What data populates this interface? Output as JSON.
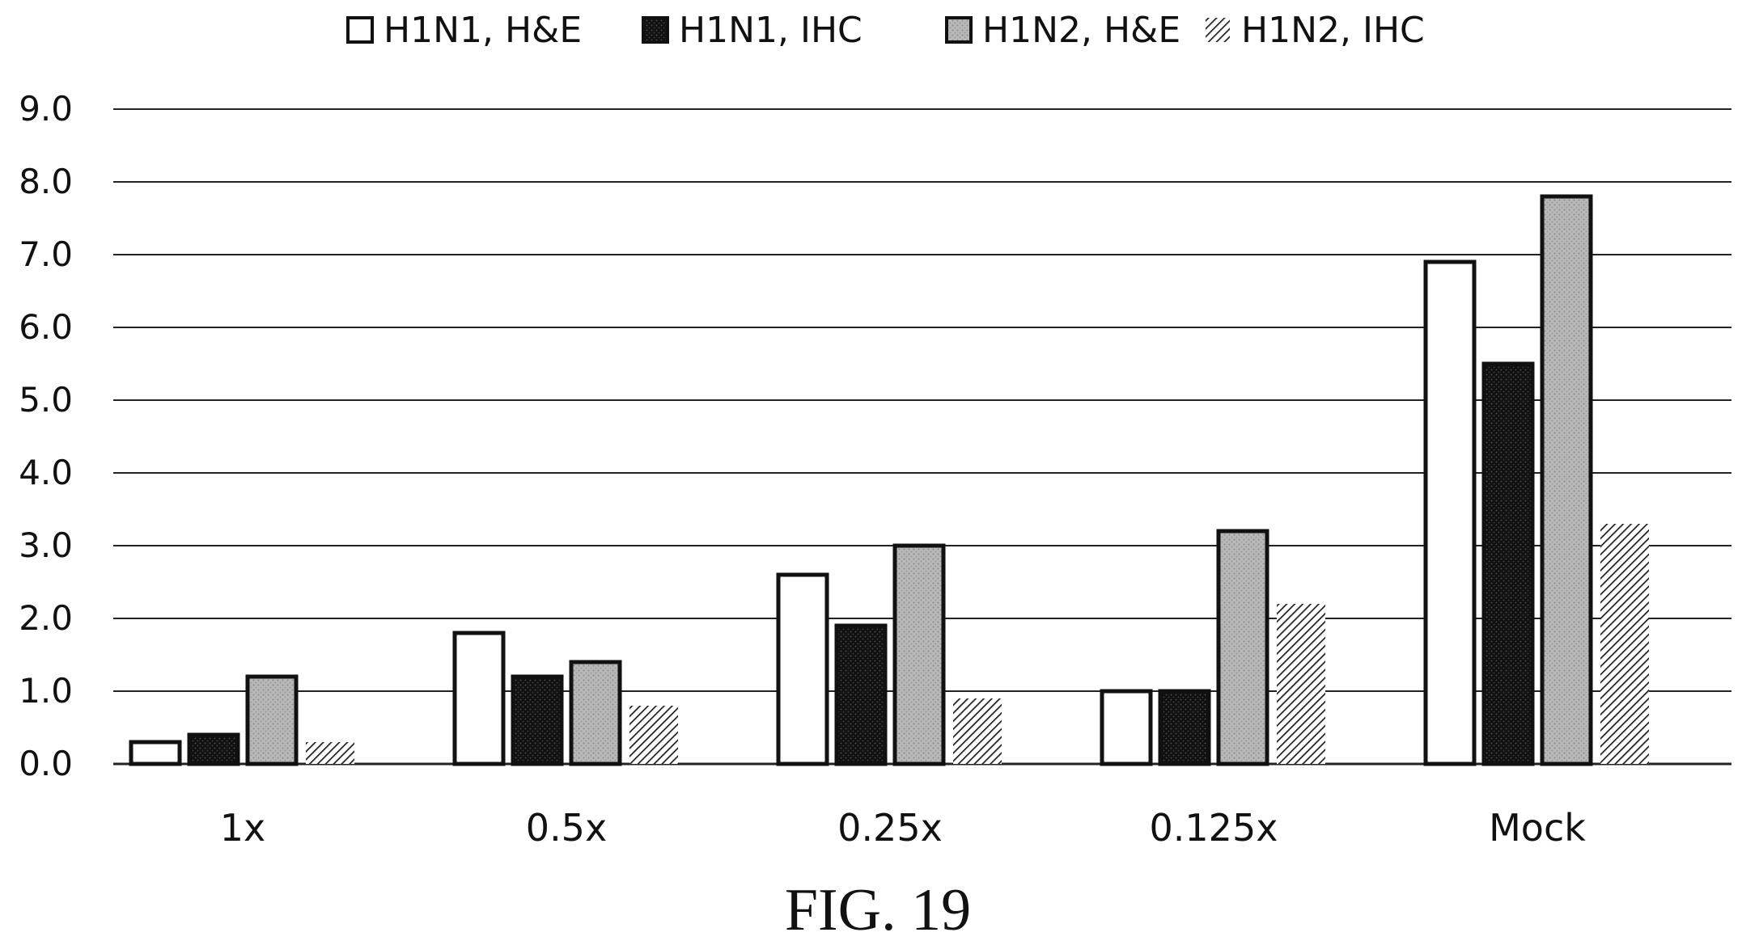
{
  "chart_data": {
    "type": "bar",
    "categories": [
      "1x",
      "0.5x",
      "0.25x",
      "0.125x",
      "Mock"
    ],
    "series": [
      {
        "name": "H1N1, H&E",
        "values": [
          0.3,
          1.8,
          2.6,
          1.0,
          6.9
        ],
        "fill": "#ffffff",
        "pattern": "none"
      },
      {
        "name": "H1N1, IHC",
        "values": [
          0.4,
          1.2,
          1.9,
          1.0,
          5.5
        ],
        "fill": "#111111",
        "pattern": "dots-dark"
      },
      {
        "name": "H1N2, H&E",
        "values": [
          1.2,
          1.4,
          3.0,
          3.2,
          7.8
        ],
        "fill": "#b4b4b4",
        "pattern": "dots-gray"
      },
      {
        "name": "H1N2, IHC",
        "values": [
          0.3,
          0.8,
          0.9,
          2.2,
          3.3
        ],
        "fill": "#888888",
        "pattern": "diagonal-hatch"
      }
    ],
    "yticks": [
      "0.0",
      "1.0",
      "2.0",
      "3.0",
      "4.0",
      "5.0",
      "6.0",
      "7.0",
      "8.0",
      "9.0"
    ],
    "ylim": [
      0,
      9
    ],
    "grid": true,
    "legend_position": "top",
    "title": "",
    "xlabel": "",
    "ylabel": ""
  },
  "caption": "FIG. 19"
}
